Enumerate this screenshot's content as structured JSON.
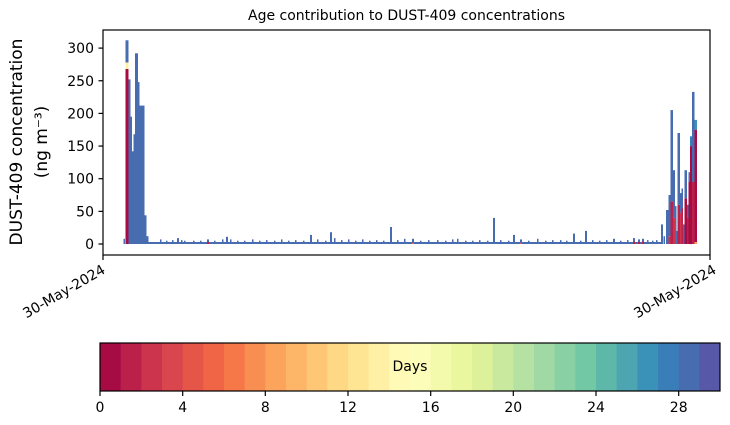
{
  "chart_data": {
    "type": "bar",
    "title": "Age contribution to DUST-409 concentrations",
    "ylabel_line1": "DUST-409 concentration",
    "ylabel_line2": "(ng m⁻³)",
    "ylabel": "DUST-409 concentration (ng m⁻³)",
    "yticks": [
      0,
      50,
      100,
      150,
      200,
      250,
      300
    ],
    "ylim": [
      0,
      330
    ],
    "x_axis": {
      "start_label": "30-May-2024",
      "end_label": "30-May-2024"
    },
    "grid": false,
    "colorbar": {
      "label": "Days",
      "ticks": [
        0,
        4,
        8,
        12,
        16,
        20,
        24,
        28
      ],
      "domain": [
        0,
        30
      ],
      "colormap_name": "Spectral (discrete, 30 levels)",
      "segment_colors": [
        "#a70b44",
        "#ba2049",
        "#cc344d",
        "#da464d",
        "#e55649",
        "#ef6545",
        "#f67848",
        "#f98e52",
        "#fca45c",
        "#fdb668",
        "#fdc776",
        "#fed884",
        "#fee594",
        "#fff0a5",
        "#fffab6",
        "#fbfdb8",
        "#f3faac",
        "#eaf79e",
        "#dcf19a",
        "#c9e99e",
        "#b5e1a2",
        "#a0d9a4",
        "#89d0a5",
        "#72c7a5",
        "#5db8a9",
        "#4ca5b1",
        "#3b92b9",
        "#397eb9",
        "#486cb0",
        "#5758a7"
      ]
    },
    "bars_format": "[x_px_from_plot_left, width_px, [[age_days, height_ng_m3], ...]] segments stack bottom-up, age maps to colorbar color",
    "bars": [
      [
        20.5,
        1.5,
        [
          [
            28,
            8
          ]
        ]
      ],
      [
        22.5,
        3,
        [
          [
            0,
            268
          ],
          [
            13,
            10
          ],
          [
            28,
            34
          ]
        ]
      ],
      [
        25.5,
        2,
        [
          [
            28,
            252
          ]
        ]
      ],
      [
        27.5,
        1.5,
        [
          [
            28,
            195
          ]
        ]
      ],
      [
        29,
        1.5,
        [
          [
            28,
            142
          ]
        ]
      ],
      [
        30.5,
        1.5,
        [
          [
            28,
            168
          ]
        ]
      ],
      [
        32,
        3,
        [
          [
            28,
            292
          ]
        ]
      ],
      [
        35,
        1.5,
        [
          [
            28,
            248
          ]
        ]
      ],
      [
        36.5,
        5,
        [
          [
            28,
            212
          ]
        ]
      ],
      [
        41.5,
        2,
        [
          [
            28,
            44
          ]
        ]
      ],
      [
        43.5,
        2,
        [
          [
            28,
            12
          ]
        ]
      ],
      [
        45.5,
        512.5,
        [
          [
            28,
            3
          ]
        ]
      ],
      [
        57,
        1.5,
        [
          [
            28,
            7
          ]
        ]
      ],
      [
        63,
        1.5,
        [
          [
            28,
            5
          ]
        ]
      ],
      [
        69,
        1.5,
        [
          [
            28,
            6
          ]
        ]
      ],
      [
        74,
        2,
        [
          [
            28,
            9
          ]
        ]
      ],
      [
        78,
        1.5,
        [
          [
            28,
            6
          ]
        ]
      ],
      [
        81,
        1.5,
        [
          [
            28,
            5
          ]
        ]
      ],
      [
        90,
        1.5,
        [
          [
            28,
            5
          ]
        ]
      ],
      [
        97,
        1.5,
        [
          [
            28,
            5
          ]
        ]
      ],
      [
        104,
        2,
        [
          [
            1,
            3
          ],
          [
            28,
            4
          ]
        ]
      ],
      [
        111,
        1.5,
        [
          [
            28,
            5
          ]
        ]
      ],
      [
        119,
        1.5,
        [
          [
            28,
            7
          ]
        ]
      ],
      [
        123,
        2,
        [
          [
            28,
            11
          ]
        ]
      ],
      [
        127,
        1.5,
        [
          [
            28,
            7
          ]
        ]
      ],
      [
        134,
        1.5,
        [
          [
            28,
            5
          ]
        ]
      ],
      [
        141,
        1.5,
        [
          [
            28,
            5
          ]
        ]
      ],
      [
        149,
        1.5,
        [
          [
            28,
            7
          ]
        ]
      ],
      [
        156,
        1.5,
        [
          [
            28,
            5
          ]
        ]
      ],
      [
        163,
        1.5,
        [
          [
            28,
            6
          ]
        ]
      ],
      [
        171,
        1.5,
        [
          [
            28,
            5
          ]
        ]
      ],
      [
        178,
        1.5,
        [
          [
            28,
            7
          ]
        ]
      ],
      [
        185,
        1.5,
        [
          [
            28,
            5
          ]
        ]
      ],
      [
        192,
        1.5,
        [
          [
            28,
            6
          ]
        ]
      ],
      [
        200,
        1.5,
        [
          [
            28,
            5
          ]
        ]
      ],
      [
        207,
        2,
        [
          [
            28,
            14
          ]
        ]
      ],
      [
        214,
        1.5,
        [
          [
            28,
            7
          ]
        ]
      ],
      [
        222,
        1.5,
        [
          [
            28,
            5
          ]
        ]
      ],
      [
        227,
        2,
        [
          [
            28,
            18
          ]
        ]
      ],
      [
        231,
        1.5,
        [
          [
            28,
            9
          ]
        ]
      ],
      [
        238,
        1.5,
        [
          [
            28,
            6
          ]
        ]
      ],
      [
        245,
        1.5,
        [
          [
            28,
            7
          ]
        ]
      ],
      [
        252,
        1.5,
        [
          [
            28,
            5
          ]
        ]
      ],
      [
        259,
        1.5,
        [
          [
            28,
            7
          ]
        ]
      ],
      [
        266,
        1.5,
        [
          [
            28,
            5
          ]
        ]
      ],
      [
        273,
        1.5,
        [
          [
            28,
            6
          ]
        ]
      ],
      [
        280,
        1.5,
        [
          [
            28,
            5
          ]
        ]
      ],
      [
        287,
        2,
        [
          [
            28,
            26
          ]
        ]
      ],
      [
        294,
        1.5,
        [
          [
            28,
            6
          ]
        ]
      ],
      [
        301,
        1.5,
        [
          [
            28,
            8
          ]
        ]
      ],
      [
        309,
        2,
        [
          [
            5,
            2
          ],
          [
            28,
            6
          ]
        ]
      ],
      [
        317,
        1.5,
        [
          [
            28,
            5
          ]
        ]
      ],
      [
        325,
        1.5,
        [
          [
            28,
            6
          ]
        ]
      ],
      [
        334,
        1.5,
        [
          [
            28,
            6
          ]
        ]
      ],
      [
        342,
        1.5,
        [
          [
            28,
            5
          ]
        ]
      ],
      [
        349,
        1.5,
        [
          [
            28,
            7
          ]
        ]
      ],
      [
        354,
        1.5,
        [
          [
            28,
            8
          ]
        ]
      ],
      [
        362,
        1.5,
        [
          [
            28,
            5
          ]
        ]
      ],
      [
        369,
        1.5,
        [
          [
            28,
            5
          ]
        ]
      ],
      [
        376,
        1.5,
        [
          [
            28,
            6
          ]
        ]
      ],
      [
        384,
        1.5,
        [
          [
            28,
            5
          ]
        ]
      ],
      [
        390,
        2,
        [
          [
            28,
            40
          ]
        ]
      ],
      [
        397,
        1.5,
        [
          [
            28,
            6
          ]
        ]
      ],
      [
        405,
        1.5,
        [
          [
            28,
            5
          ]
        ]
      ],
      [
        410,
        2,
        [
          [
            28,
            14
          ]
        ]
      ],
      [
        417,
        2,
        [
          [
            4,
            2
          ],
          [
            28,
            5
          ]
        ]
      ],
      [
        425,
        1.5,
        [
          [
            28,
            5
          ]
        ]
      ],
      [
        434,
        1.5,
        [
          [
            28,
            8
          ]
        ]
      ],
      [
        442,
        1.5,
        [
          [
            28,
            5
          ]
        ]
      ],
      [
        449,
        1.5,
        [
          [
            28,
            6
          ]
        ]
      ],
      [
        457,
        1.5,
        [
          [
            28,
            6
          ]
        ]
      ],
      [
        463,
        1.5,
        [
          [
            28,
            5
          ]
        ]
      ],
      [
        470,
        2,
        [
          [
            28,
            16
          ]
        ]
      ],
      [
        477,
        1.5,
        [
          [
            28,
            5
          ]
        ]
      ],
      [
        482,
        2,
        [
          [
            28,
            20
          ]
        ]
      ],
      [
        489,
        1.5,
        [
          [
            28,
            6
          ]
        ]
      ],
      [
        496,
        1.5,
        [
          [
            28,
            5
          ]
        ]
      ],
      [
        503,
        1.5,
        [
          [
            28,
            6
          ]
        ]
      ],
      [
        510,
        2,
        [
          [
            28,
            8
          ]
        ]
      ],
      [
        517,
        1.5,
        [
          [
            28,
            5
          ]
        ]
      ],
      [
        524,
        1.5,
        [
          [
            28,
            6
          ]
        ]
      ],
      [
        530,
        2,
        [
          [
            1,
            4
          ],
          [
            28,
            5
          ]
        ]
      ],
      [
        535,
        2,
        [
          [
            1,
            3
          ],
          [
            28,
            4
          ]
        ]
      ],
      [
        539,
        2,
        [
          [
            1,
            4
          ],
          [
            28,
            4
          ]
        ]
      ],
      [
        544,
        1.5,
        [
          [
            28,
            6
          ]
        ]
      ],
      [
        549,
        1.5,
        [
          [
            28,
            5
          ]
        ]
      ],
      [
        553,
        1.5,
        [
          [
            28,
            6
          ]
        ]
      ],
      [
        558,
        2,
        [
          [
            28,
            30
          ]
        ]
      ],
      [
        560.5,
        1.5,
        [
          [
            28,
            12
          ]
        ]
      ],
      [
        563,
        2.5,
        [
          [
            28,
            52
          ]
        ]
      ],
      [
        565.5,
        2,
        [
          [
            2,
            12
          ],
          [
            28,
            63
          ]
        ]
      ],
      [
        567.5,
        2.5,
        [
          [
            1,
            65
          ],
          [
            28,
            140
          ]
        ]
      ],
      [
        570,
        2,
        [
          [
            2,
            40
          ],
          [
            28,
            73
          ]
        ]
      ],
      [
        572,
        1.5,
        [
          [
            28,
            58
          ]
        ]
      ],
      [
        573.5,
        1,
        [
          [
            28,
            20
          ]
        ]
      ],
      [
        574.5,
        2.5,
        [
          [
            1,
            60
          ],
          [
            28,
            110
          ]
        ]
      ],
      [
        577,
        1.5,
        [
          [
            2,
            48
          ],
          [
            28,
            30
          ]
        ]
      ],
      [
        578.5,
        1.5,
        [
          [
            1,
            55
          ],
          [
            28,
            30
          ]
        ]
      ],
      [
        580,
        1.5,
        [
          [
            28,
            30
          ]
        ]
      ],
      [
        581.5,
        2.5,
        [
          [
            0,
            70
          ],
          [
            28,
            43
          ]
        ]
      ],
      [
        584,
        1.5,
        [
          [
            1,
            40
          ],
          [
            28,
            20
          ]
        ]
      ],
      [
        585.5,
        1.5,
        [
          [
            0,
            95
          ],
          [
            28,
            15
          ]
        ]
      ],
      [
        587,
        2,
        [
          [
            0,
            150
          ],
          [
            27,
            15
          ]
        ]
      ],
      [
        589,
        2.5,
        [
          [
            1,
            95
          ],
          [
            28,
            138
          ]
        ]
      ],
      [
        591.5,
        2.5,
        [
          [
            8,
            3
          ],
          [
            0,
            172
          ],
          [
            26,
            15
          ]
        ]
      ]
    ]
  }
}
